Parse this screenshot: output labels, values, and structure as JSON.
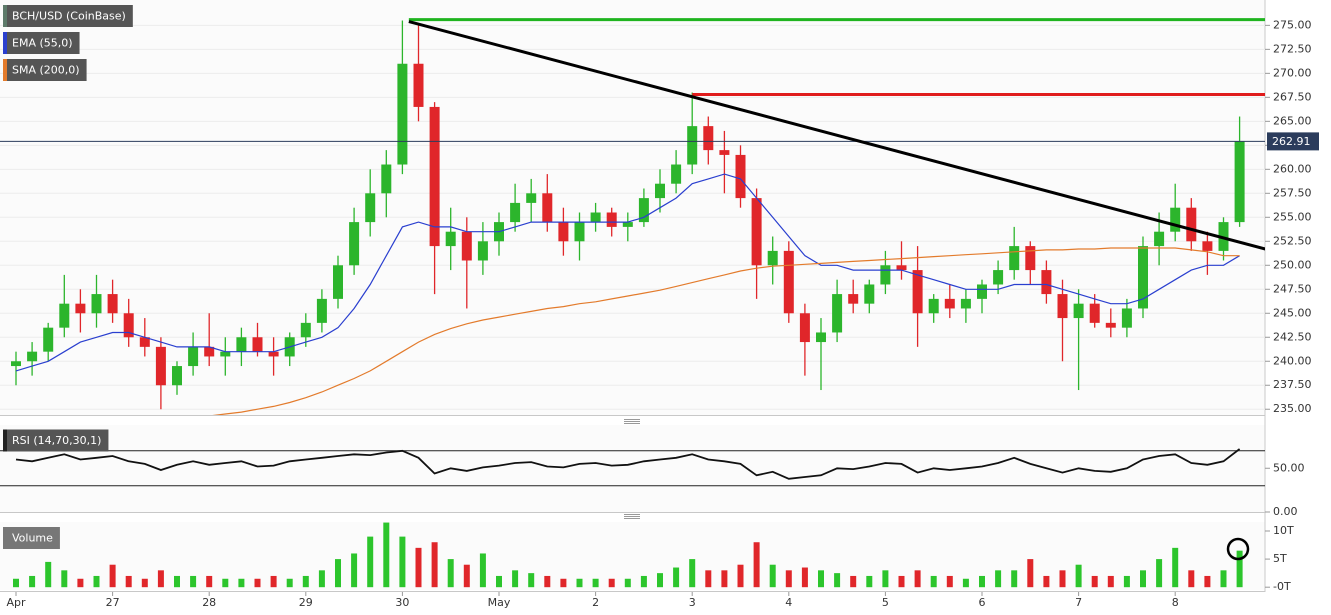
{
  "chart_data": [
    {
      "type": "candlestick",
      "categories": [
        "Apr",
        null,
        null,
        null,
        null,
        null,
        "27",
        null,
        null,
        null,
        null,
        null,
        "28",
        null,
        null,
        null,
        null,
        null,
        "29",
        null,
        null,
        null,
        null,
        null,
        "30",
        null,
        null,
        null,
        null,
        null,
        "May",
        null,
        null,
        null,
        null,
        null,
        "2",
        null,
        null,
        null,
        null,
        null,
        "3",
        null,
        null,
        null,
        null,
        null,
        "4",
        null,
        null,
        null,
        null,
        null,
        "5",
        null,
        null,
        null,
        null,
        null,
        "6",
        null,
        null,
        null,
        null,
        null,
        "7",
        null,
        null,
        null,
        null,
        null,
        "8",
        null,
        null,
        null,
        null
      ],
      "series": [
        {
          "name": "BCH/USD (CoinBase)",
          "color": "#5d7a6a",
          "up_color": "#2cb52c",
          "down_color": "#e0262a",
          "open": [
            239.5,
            240,
            241,
            243.5,
            246,
            245,
            247,
            245,
            242.5,
            241.5,
            237.5,
            239.5,
            241.5,
            240.5,
            241,
            242.5,
            241,
            240.5,
            242.5,
            244,
            246.5,
            250,
            254.5,
            257.5,
            260.5,
            271,
            266.5,
            252,
            253.5,
            250.5,
            252.5,
            254.5,
            256.5,
            257.5,
            254.5,
            252.5,
            254.5,
            255.5,
            254,
            254.5,
            257,
            258.5,
            260.5,
            264.5,
            262,
            261.5,
            257,
            250,
            251.5,
            245,
            242,
            243,
            247,
            246,
            248,
            250,
            249.5,
            245,
            246.5,
            245.5,
            246.5,
            248,
            249.5,
            252,
            249.5,
            247,
            244.5,
            246,
            244,
            243.5,
            245.5,
            252,
            253.5,
            256,
            252.5,
            251.5,
            254.5
          ],
          "high": [
            241,
            242,
            244,
            249,
            247.5,
            249,
            248.5,
            246.5,
            244.5,
            242.5,
            240,
            243,
            245,
            242.5,
            243.5,
            244,
            242.5,
            243,
            245,
            247.5,
            251,
            256,
            260,
            262,
            275.5,
            275,
            267,
            256,
            255,
            254.5,
            255.5,
            258.5,
            259,
            259.5,
            256,
            255.5,
            256.5,
            256,
            255.5,
            258,
            260,
            262,
            268,
            265.5,
            264,
            262.5,
            258,
            253,
            252.5,
            246,
            244.5,
            248.5,
            248.5,
            248.5,
            251.5,
            252.5,
            252,
            247,
            248,
            247.5,
            248.5,
            250.5,
            254,
            252.5,
            250.5,
            248.5,
            247.5,
            247,
            245.5,
            246.5,
            253,
            255.5,
            258.5,
            257,
            253.5,
            255,
            265.5
          ],
          "low": [
            237.5,
            238.5,
            240,
            242.5,
            243,
            243.5,
            244,
            241.5,
            240.5,
            235,
            236.5,
            238.5,
            239.5,
            238.5,
            239.5,
            240.5,
            238.5,
            239.5,
            241.5,
            243,
            245.5,
            249,
            253,
            255,
            259.5,
            265,
            247,
            249.5,
            245.5,
            249,
            251,
            253.5,
            254.5,
            253.5,
            251,
            250.5,
            253.5,
            253,
            252.5,
            254,
            255.5,
            257.5,
            259.5,
            260.5,
            257.5,
            256,
            246.5,
            248,
            244,
            238.5,
            237,
            242,
            245,
            245,
            247,
            248.5,
            241.5,
            244,
            244.5,
            244,
            245,
            247,
            248.5,
            248,
            246,
            240,
            237,
            243.5,
            242.5,
            242.5,
            244.5,
            250,
            252.5,
            251.5,
            249,
            250.5,
            254
          ],
          "close": [
            240,
            241,
            243.5,
            246,
            245,
            247,
            245,
            242.5,
            241.5,
            237.5,
            239.5,
            241.5,
            240.5,
            241,
            242.5,
            241,
            240.5,
            242.5,
            244,
            246.5,
            250,
            254.5,
            257.5,
            260.5,
            271,
            266.5,
            252,
            253.5,
            250.5,
            252.5,
            254.5,
            256.5,
            257.5,
            254.5,
            252.5,
            254.5,
            255.5,
            254,
            254.5,
            257,
            258.5,
            260.5,
            264.5,
            262,
            261.5,
            257,
            250,
            251.5,
            245,
            242,
            243,
            247,
            246,
            248,
            250,
            249.5,
            245,
            246.5,
            245.5,
            246.5,
            248,
            249.5,
            252,
            249.5,
            247,
            244.5,
            246,
            244,
            243.5,
            245.5,
            252,
            253.5,
            256,
            252.5,
            251.5,
            254.5,
            262.91
          ]
        },
        {
          "name": "EMA (55,0)",
          "color": "#2a3fcf",
          "values": [
            239,
            239.5,
            240,
            241,
            242,
            242.5,
            243,
            243,
            242.5,
            242,
            241.5,
            241.5,
            241.5,
            241,
            241,
            241,
            241,
            241.5,
            242,
            242.5,
            243.5,
            245.5,
            248,
            251,
            254,
            254.5,
            254,
            254,
            253.5,
            253.5,
            253.5,
            254,
            254.5,
            254.5,
            254.5,
            254.5,
            254.5,
            254.5,
            254.5,
            255,
            256,
            257,
            258.5,
            259,
            259.5,
            259,
            257,
            255,
            253,
            251,
            250,
            250,
            249.5,
            249.5,
            249.5,
            249.5,
            249,
            248.5,
            248,
            247.5,
            247.5,
            247.5,
            248,
            248,
            248,
            247.5,
            247,
            246.5,
            246,
            246,
            246.5,
            247.5,
            248.5,
            249.5,
            250,
            250,
            251
          ]
        },
        {
          "name": "SMA (200,0)",
          "color": "#e37b2c",
          "values": [
            null,
            null,
            null,
            null,
            null,
            null,
            null,
            null,
            null,
            null,
            null,
            null,
            234.3,
            234.5,
            234.7,
            235,
            235.3,
            235.7,
            236.2,
            236.8,
            237.5,
            238.2,
            239,
            240,
            241,
            242,
            242.8,
            243.4,
            243.9,
            244.3,
            244.6,
            244.9,
            245.2,
            245.5,
            245.7,
            246,
            246.2,
            246.5,
            246.8,
            247.1,
            247.4,
            247.8,
            248.2,
            248.6,
            249,
            249.4,
            249.7,
            249.9,
            250,
            250.1,
            250.2,
            250.3,
            250.4,
            250.5,
            250.6,
            250.7,
            250.8,
            250.9,
            251,
            251.1,
            251.2,
            251.3,
            251.4,
            251.5,
            251.6,
            251.6,
            251.7,
            251.7,
            251.8,
            251.8,
            251.8,
            251.8,
            251.8,
            251.6,
            251.4,
            251,
            251
          ]
        }
      ],
      "ylim": [
        234.4,
        276.6
      ],
      "yticks": [
        {
          "value": 235,
          "label": "235.00"
        },
        {
          "value": 237.5,
          "label": "237.50"
        },
        {
          "value": 240,
          "label": "240.00"
        },
        {
          "value": 242.5,
          "label": "242.50"
        },
        {
          "value": 245,
          "label": "245.00"
        },
        {
          "value": 247.5,
          "label": "247.50"
        },
        {
          "value": 250,
          "label": "250.00"
        },
        {
          "value": 252.5,
          "label": "252.50"
        },
        {
          "value": 255,
          "label": "255.00"
        },
        {
          "value": 257.5,
          "label": "257.50"
        },
        {
          "value": 260,
          "label": "260.00"
        },
        {
          "value": 262.5,
          "label": "262.50"
        },
        {
          "value": 265,
          "label": "265.00"
        },
        {
          "value": 267.5,
          "label": "267.50"
        },
        {
          "value": 270,
          "label": "270.00"
        },
        {
          "value": 272.5,
          "label": "272.50"
        },
        {
          "value": 275,
          "label": "275.00"
        }
      ],
      "grid": true,
      "drawings": [
        {
          "type": "hline",
          "color": "#1fb41f",
          "value": 275.6,
          "start": 24.4
        },
        {
          "type": "hline",
          "color": "#e01c1c",
          "value": 267.8,
          "start": 42
        },
        {
          "type": "trendline",
          "color": "#000000",
          "start": [
            24.4,
            275.4
          ],
          "end": [
            77.8,
            251.6
          ]
        }
      ]
    },
    {
      "type": "line",
      "title": "RSI (14,70,30,1)",
      "series": [
        {
          "color": "#111111",
          "values": [
            60,
            58,
            62,
            66,
            60,
            62,
            64,
            58,
            55,
            48,
            54,
            58,
            54,
            56,
            58,
            52,
            53,
            58,
            60,
            62,
            64,
            66,
            65,
            68,
            70,
            62,
            44,
            50,
            47,
            51,
            53,
            56,
            57,
            52,
            51,
            55,
            56,
            53,
            54,
            58,
            60,
            62,
            66,
            60,
            58,
            55,
            42,
            46,
            38,
            40,
            42,
            50,
            49,
            52,
            56,
            55,
            45,
            50,
            48,
            50,
            52,
            56,
            62,
            55,
            50,
            45,
            50,
            47,
            46,
            50,
            60,
            64,
            66,
            56,
            54,
            58,
            72
          ]
        }
      ],
      "ylim": [
        0,
        100
      ],
      "yticks": [
        {
          "value": 50,
          "label": "50.00"
        },
        {
          "value": 0,
          "label": "0.00"
        }
      ],
      "levels": [
        70,
        30
      ]
    },
    {
      "type": "bar",
      "title": "Volume",
      "up_color": "#2cc52c",
      "down_color": "#e0262a",
      "values": [
        1.5,
        2,
        4.5,
        3,
        1.5,
        2,
        4,
        2,
        1.5,
        3,
        2,
        2,
        2,
        1.5,
        1.5,
        1.5,
        2,
        1.5,
        2,
        3,
        5,
        6,
        9,
        11.5,
        9,
        7,
        8,
        5,
        4,
        6,
        2,
        3,
        2.5,
        2,
        1.5,
        1.5,
        1.5,
        1.5,
        1.5,
        2,
        2.5,
        3.5,
        5,
        3,
        3,
        4,
        8,
        4,
        3,
        3.5,
        3,
        2.5,
        2,
        2,
        3,
        2,
        3,
        2,
        2,
        1.5,
        2,
        3,
        3,
        5,
        2,
        3,
        4,
        2,
        2,
        2,
        3,
        5,
        7,
        3,
        2,
        3,
        6.5
      ],
      "ylim": [
        -0.5,
        11.6
      ],
      "yticks": [
        {
          "value": 10,
          "label": "10T"
        },
        {
          "value": 5,
          "label": "5T"
        },
        {
          "value": 0,
          "label": "-0T"
        }
      ]
    }
  ]
}
